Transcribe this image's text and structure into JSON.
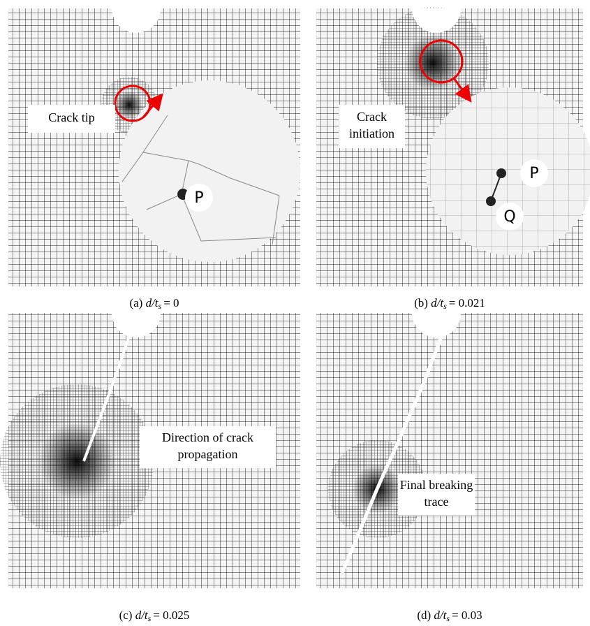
{
  "panels": [
    {
      "caption": {
        "label": "(a)",
        "variable": "d/t",
        "subscript": "s",
        "value": "= 0"
      },
      "annotation": {
        "lines": [
          "Crack tip"
        ]
      },
      "points": [
        "P"
      ]
    },
    {
      "caption": {
        "label": "(b)",
        "variable": "d/t",
        "subscript": "s",
        "value": "= 0.021"
      },
      "annotation": {
        "lines": [
          "Crack",
          "initiation"
        ]
      },
      "points": [
        "P",
        "Q"
      ]
    },
    {
      "caption": {
        "label": "(c)",
        "variable": "d/t",
        "subscript": "s",
        "value": "= 0.025"
      },
      "annotation": {
        "lines": [
          "Direction of crack",
          "propagation"
        ]
      },
      "points": []
    },
    {
      "caption": {
        "label": "(d)",
        "variable": "d/t",
        "subscript": "s",
        "value": "= 0.03"
      },
      "annotation": {
        "lines": [
          "Final breaking",
          "trace"
        ]
      },
      "points": []
    }
  ]
}
